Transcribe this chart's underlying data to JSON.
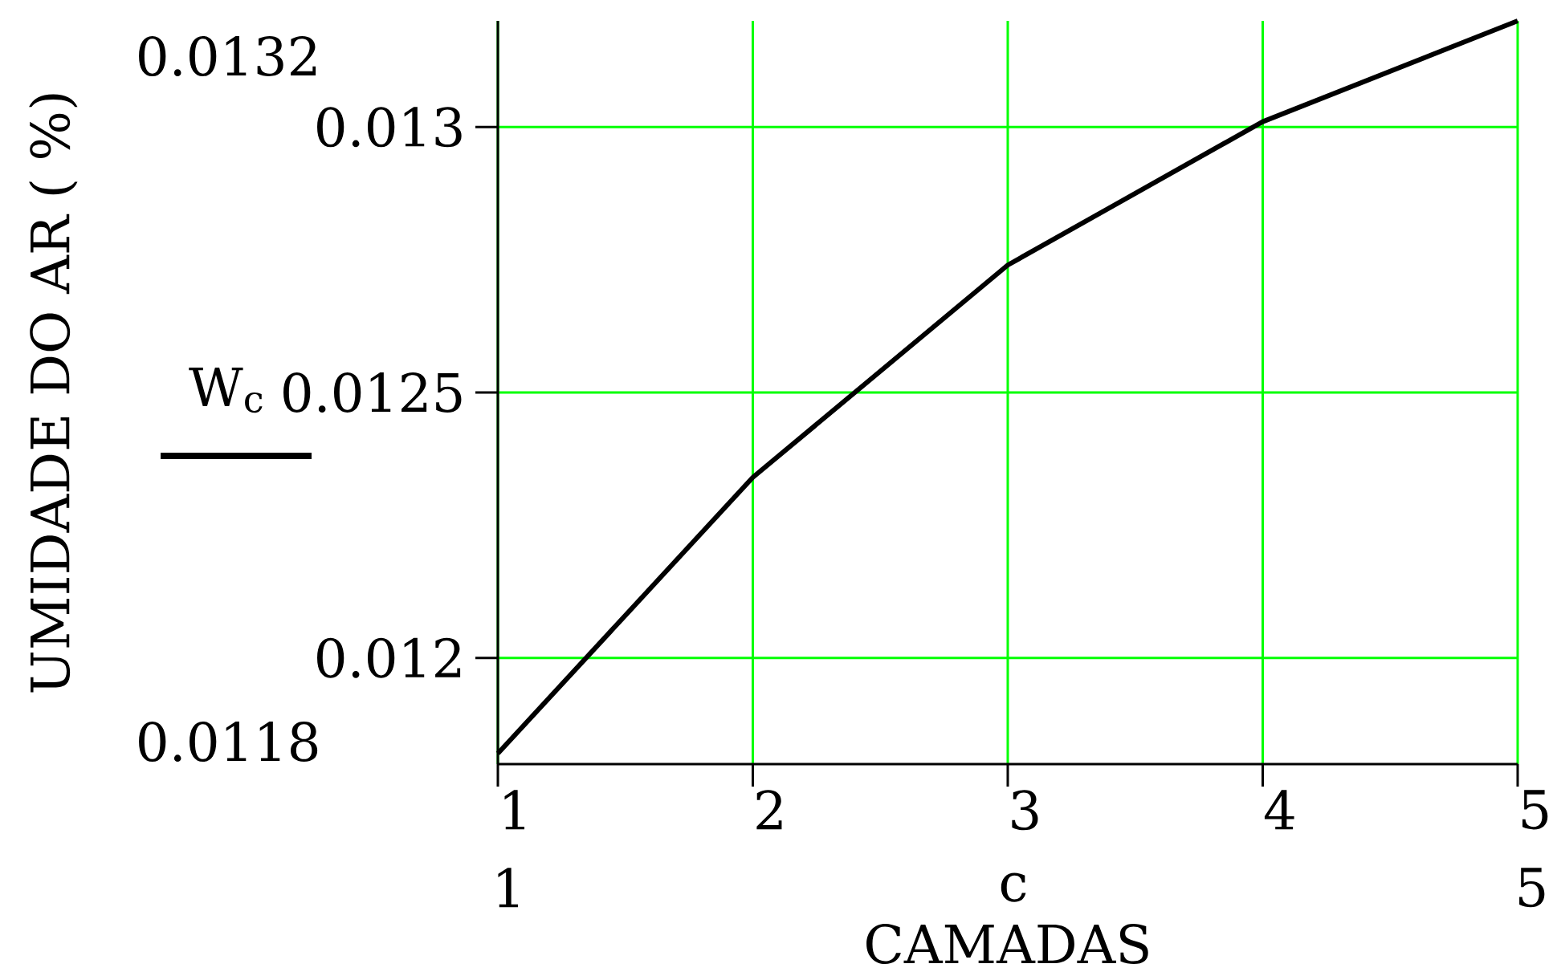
{
  "chart_data": {
    "type": "line",
    "xlabel": "CAMADAS",
    "ylabel": "UMIDADE DO AR ( %)",
    "x": [
      1,
      2,
      3,
      4,
      5
    ],
    "series": [
      {
        "name": "W$_{c}$",
        "color": "#000000",
        "values": [
          0.01182,
          0.01234,
          0.01274,
          0.01301,
          0.0132
        ]
      }
    ],
    "xlim": [
      1,
      5
    ],
    "ylim": [
      0.0118,
      0.0132
    ],
    "xticks": [
      1,
      2,
      3,
      4,
      5
    ],
    "yticks": [
      0.012,
      0.0125,
      0.013
    ],
    "grid": true,
    "legend": "left",
    "annotations": [
      "0.0132",
      "0.0118",
      "1",
      "c",
      "5"
    ]
  }
}
